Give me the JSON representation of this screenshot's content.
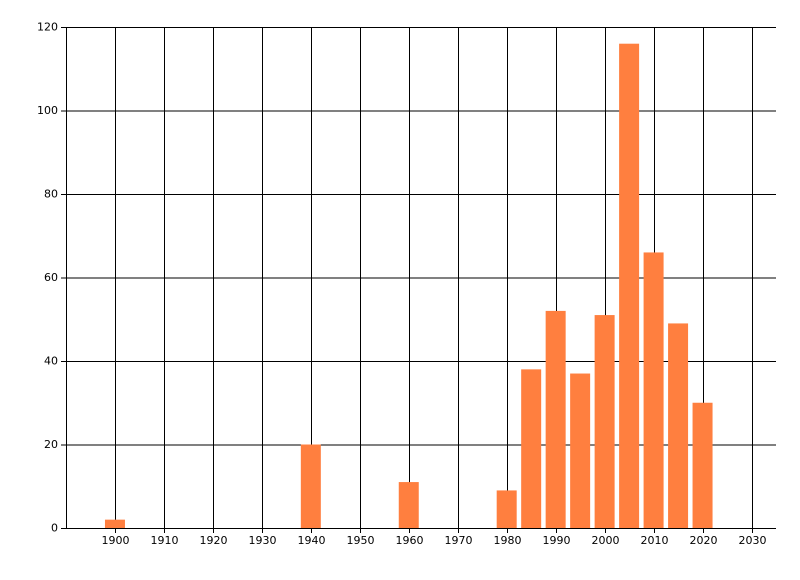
{
  "chart_data": {
    "type": "bar",
    "x": [
      1900,
      1940,
      1960,
      1980,
      1985,
      1990,
      1995,
      2000,
      2005,
      2010,
      2015,
      2020
    ],
    "values": [
      2,
      20,
      11,
      9,
      38,
      52,
      37,
      51,
      116,
      66,
      49,
      30
    ],
    "color": "#ff7f3f",
    "xlim": [
      1890,
      2035
    ],
    "ylim": [
      0,
      120
    ],
    "xticks": [
      1900,
      1910,
      1920,
      1930,
      1940,
      1950,
      1960,
      1970,
      1980,
      1990,
      2000,
      2010,
      2020,
      2030
    ],
    "yticks": [
      0,
      20,
      40,
      60,
      80,
      100,
      120
    ],
    "grid": true
  }
}
